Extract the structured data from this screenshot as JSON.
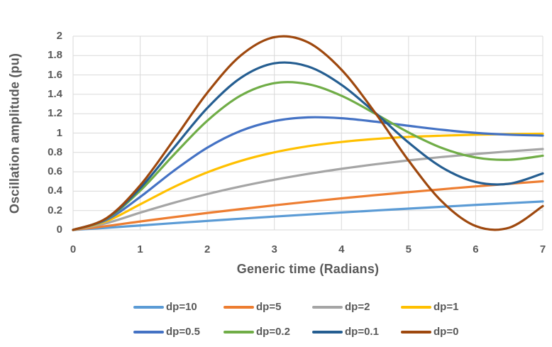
{
  "chart_data": {
    "type": "line",
    "title": "",
    "x_axis": {
      "title": "Generic time (Radians)",
      "ticks": [
        "0",
        "1",
        "2",
        "3",
        "4",
        "5",
        "6",
        "7"
      ],
      "range": [
        0,
        7
      ]
    },
    "y_axis": {
      "title": "Oscillation amplitude (pu)",
      "ticks": [
        "0",
        "0.2",
        "0.4",
        "0.6",
        "0.8",
        "1",
        "1.2",
        "1.4",
        "1.6",
        "1.8",
        "2"
      ],
      "range": [
        0,
        2
      ]
    },
    "grid": true,
    "legend_position": "bottom",
    "x": [
      0,
      0.5,
      1,
      1.5,
      2,
      2.5,
      3,
      3.5,
      4,
      4.5,
      5,
      5.5,
      6,
      6.5,
      7
    ],
    "series": [
      {
        "name": "dp=10",
        "color": "#5B9BD5",
        "values": [
          0,
          0.022,
          0.046,
          0.07,
          0.093,
          0.116,
          0.138,
          0.159,
          0.18,
          0.2,
          0.22,
          0.239,
          0.258,
          0.276,
          0.294
        ]
      },
      {
        "name": "dp=5",
        "color": "#ED7D31",
        "values": [
          0,
          0.04,
          0.087,
          0.132,
          0.175,
          0.215,
          0.254,
          0.291,
          0.326,
          0.359,
          0.39,
          0.42,
          0.449,
          0.476,
          0.502
        ]
      },
      {
        "name": "dp=2",
        "color": "#A5A5A5",
        "values": [
          0,
          0.07,
          0.178,
          0.28,
          0.37,
          0.449,
          0.518,
          0.578,
          0.631,
          0.677,
          0.718,
          0.753,
          0.784,
          0.811,
          0.835
        ]
      },
      {
        "name": "dp=1",
        "color": "#FFC000",
        "values": [
          0,
          0.09,
          0.264,
          0.442,
          0.594,
          0.713,
          0.801,
          0.864,
          0.908,
          0.939,
          0.96,
          0.973,
          0.983,
          0.989,
          0.993
        ]
      },
      {
        "name": "dp=0.5",
        "color": "#4472C4",
        "values": [
          0,
          0.104,
          0.34,
          0.61,
          0.849,
          1.023,
          1.124,
          1.162,
          1.153,
          1.118,
          1.075,
          1.034,
          1.002,
          0.983,
          0.974
        ]
      },
      {
        "name": "dp=0.2",
        "color": "#70AD47",
        "values": [
          0,
          0.115,
          0.405,
          0.775,
          1.127,
          1.388,
          1.515,
          1.505,
          1.385,
          1.201,
          1.006,
          0.845,
          0.748,
          0.724,
          0.766
        ]
      },
      {
        "name": "dp=0.1",
        "color": "#255E91",
        "values": [
          0,
          0.119,
          0.431,
          0.846,
          1.258,
          1.57,
          1.72,
          1.688,
          1.498,
          1.211,
          0.902,
          0.644,
          0.495,
          0.477,
          0.583
        ]
      },
      {
        "name": "dp=0",
        "color": "#9E480E",
        "values": [
          0,
          0.122,
          0.46,
          0.929,
          1.416,
          1.801,
          1.99,
          1.937,
          1.654,
          1.211,
          0.716,
          0.291,
          0.04,
          0.023,
          0.246
        ]
      }
    ],
    "colors": {
      "grid": "#D9D9D9",
      "text": "#595959",
      "background": "#FFFFFF"
    }
  }
}
